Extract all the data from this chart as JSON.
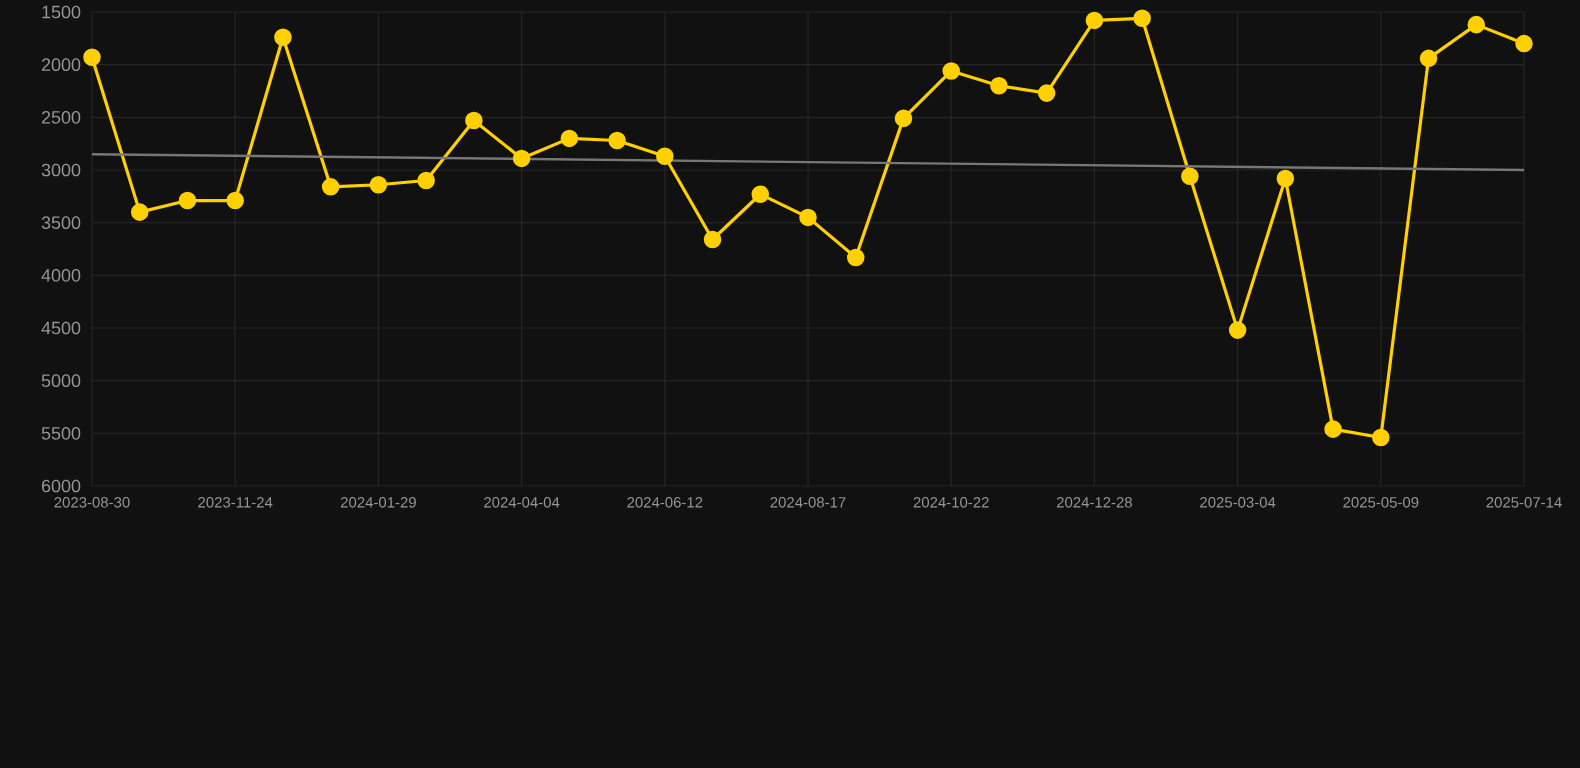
{
  "chart_data": {
    "type": "line",
    "categories": [
      "2023-08-30",
      null,
      null,
      "2023-11-24",
      null,
      null,
      "2024-01-29",
      null,
      null,
      "2024-04-04",
      null,
      null,
      "2024-06-12",
      null,
      null,
      "2024-08-17",
      null,
      null,
      "2024-10-22",
      null,
      null,
      "2024-12-28",
      null,
      null,
      "2025-03-04",
      null,
      null,
      "2025-05-09",
      null,
      null,
      "2025-07-14"
    ],
    "series": [
      {
        "color": "#ffd000",
        "marker": "circle",
        "values": [
          1930,
          3400,
          3290,
          3290,
          1740,
          3160,
          3140,
          3100,
          2530,
          2890,
          2700,
          2720,
          2870,
          3660,
          3230,
          3450,
          3830,
          2510,
          2060,
          2200,
          2270,
          1580,
          1560,
          3060,
          4520,
          3080,
          5460,
          5540,
          1940,
          1620,
          1800
        ]
      },
      {
        "type": "line",
        "color": "#777777",
        "marker": "none",
        "values": [
          2850,
          null,
          null,
          null,
          null,
          null,
          null,
          null,
          null,
          null,
          null,
          null,
          null,
          null,
          null,
          null,
          null,
          null,
          null,
          null,
          null,
          null,
          null,
          null,
          null,
          null,
          null,
          null,
          null,
          null,
          3000
        ]
      }
    ],
    "ylim": [
      6000,
      1500
    ],
    "yticks": [
      1500,
      2000,
      2500,
      3000,
      3500,
      4000,
      4500,
      5000,
      5500,
      6000
    ],
    "grid": true,
    "line_style": "solid"
  }
}
